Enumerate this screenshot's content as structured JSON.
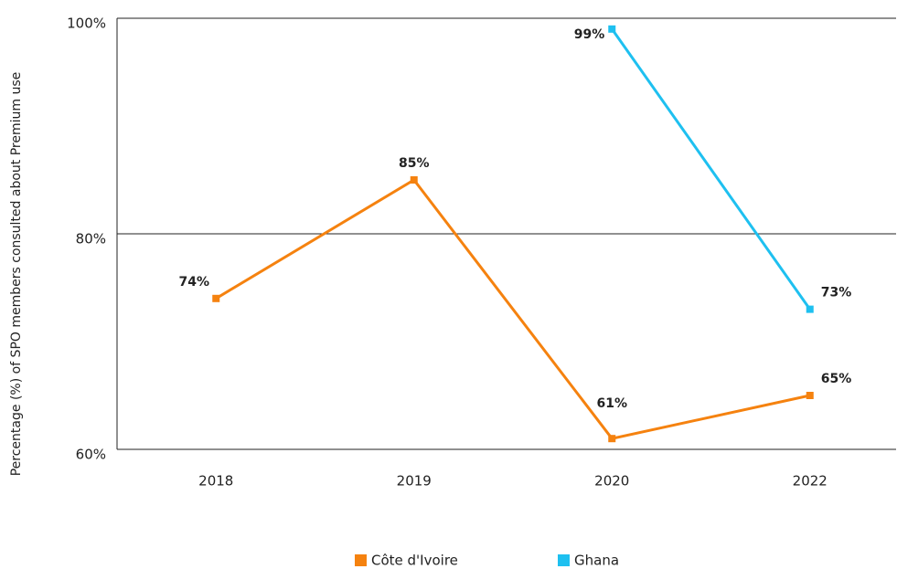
{
  "chart_data": {
    "type": "line",
    "y_label": "Percentage (%) of SPO members consulted about Premium use",
    "categories": [
      "2018",
      "2019",
      "2020",
      "2022"
    ],
    "series": [
      {
        "name": "Côte d'Ivoire",
        "color": "#f5820f",
        "values": [
          74,
          85,
          61,
          65
        ],
        "value_labels": [
          "74%",
          "85%",
          "61%",
          "65%"
        ]
      },
      {
        "name": "Ghana",
        "color": "#1ec0f0",
        "values": [
          null,
          null,
          99,
          73
        ],
        "value_labels": [
          null,
          null,
          "99%",
          "73%"
        ]
      }
    ],
    "ylim": [
      60,
      100
    ],
    "yticks": [
      {
        "value": 60,
        "label": "60%"
      },
      {
        "value": 80,
        "label": "80%"
      },
      {
        "value": 100,
        "label": "100%"
      }
    ],
    "grid": true
  }
}
